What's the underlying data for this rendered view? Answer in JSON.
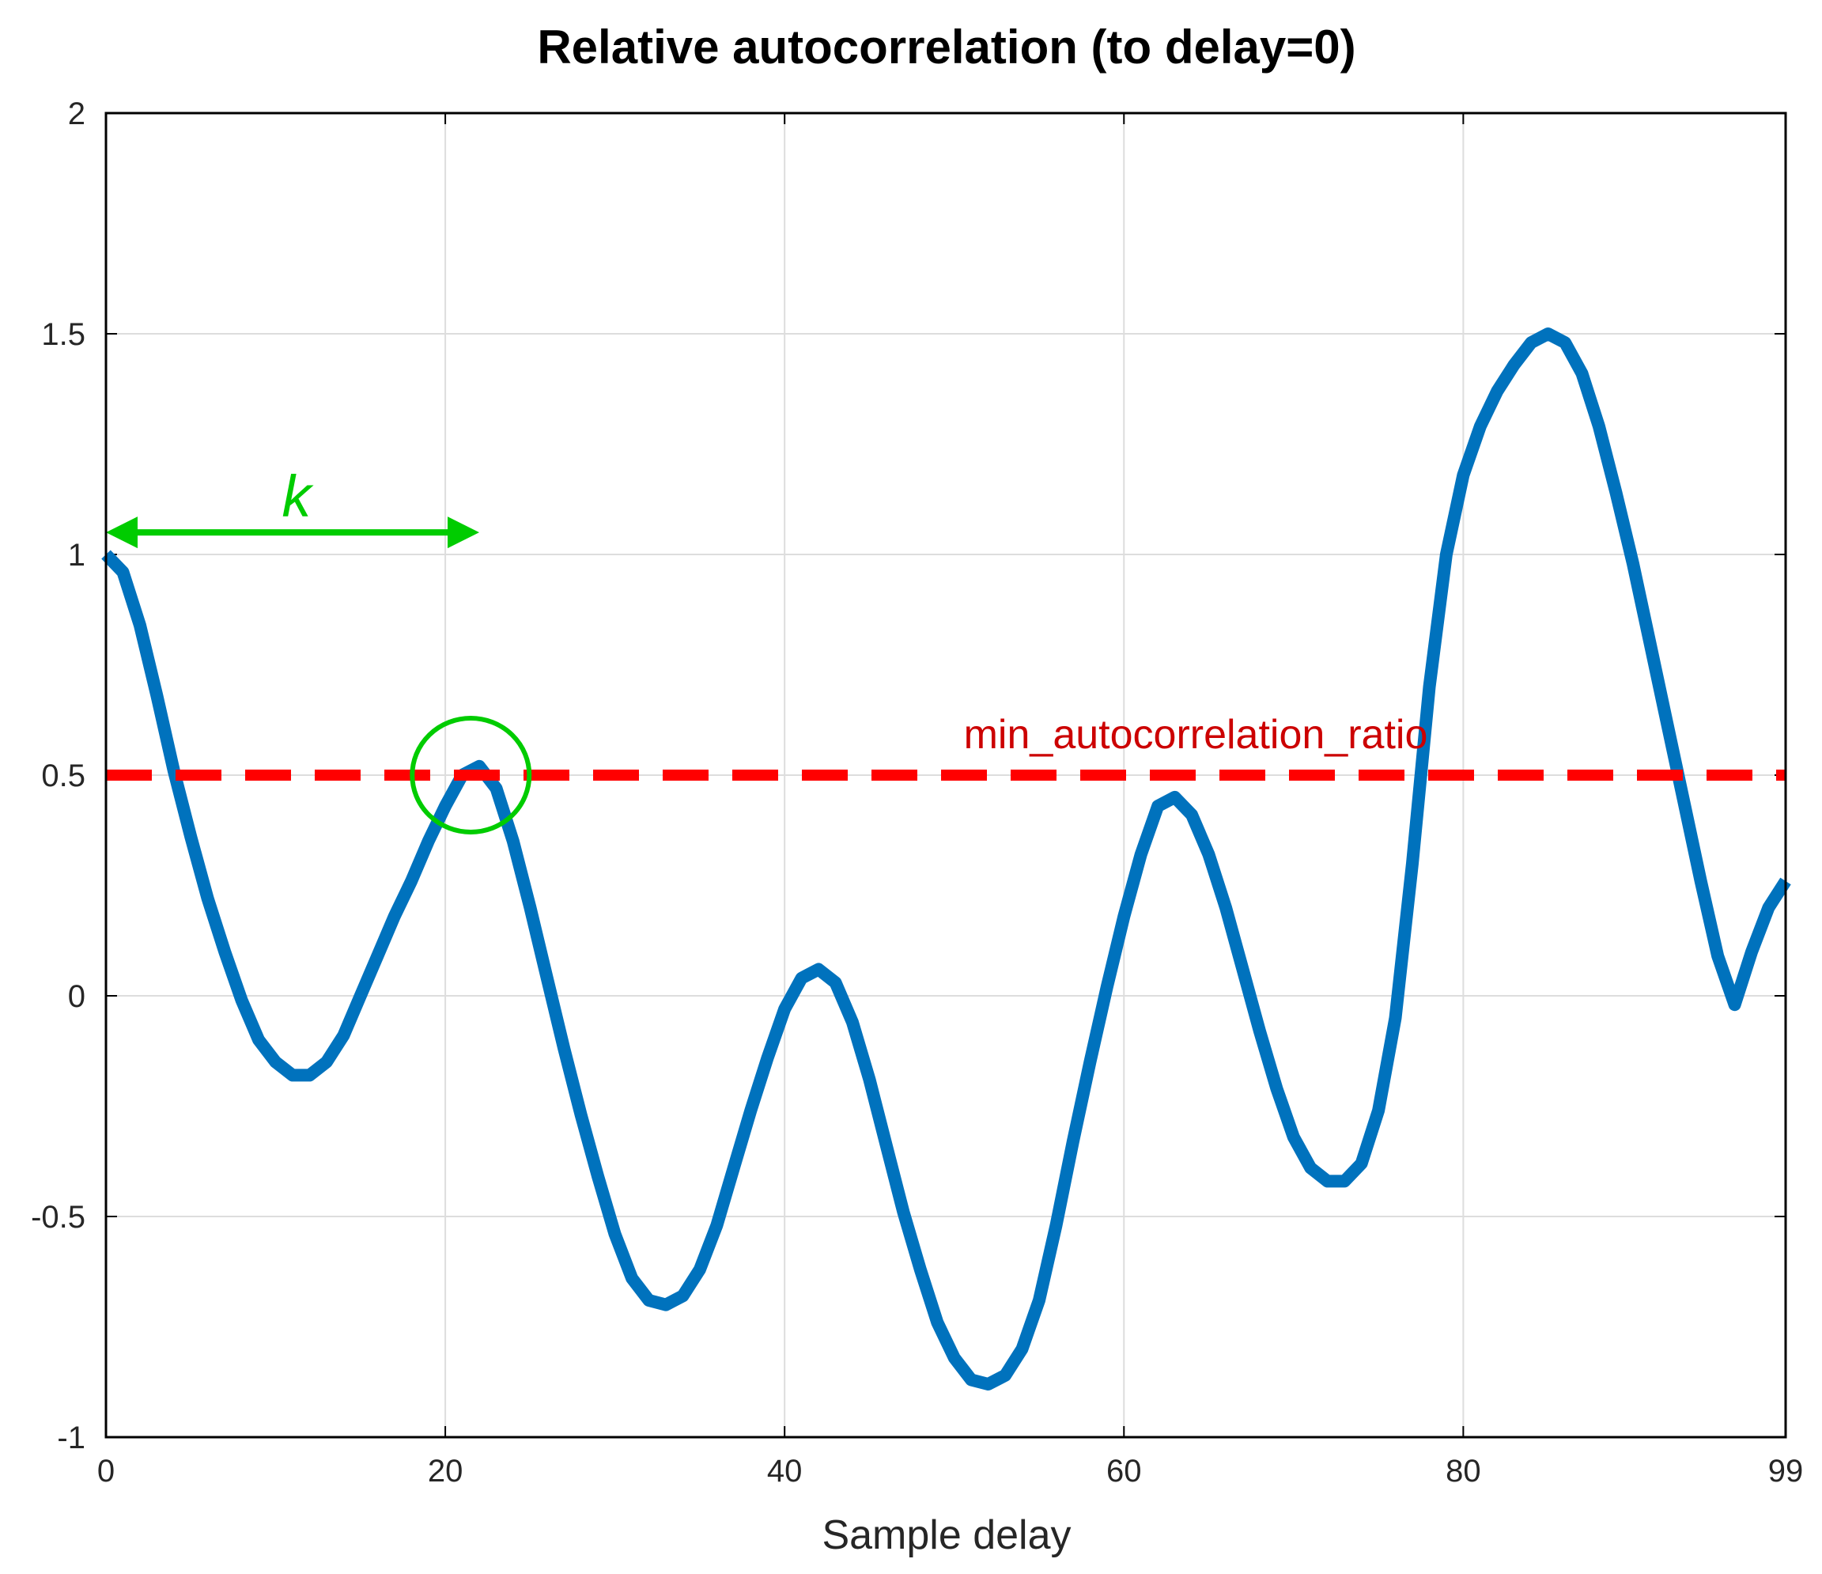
{
  "chart_data": {
    "type": "line",
    "title": "Relative autocorrelation (to delay=0)",
    "xlabel": "Sample delay",
    "ylabel": "",
    "xlim": [
      0,
      99
    ],
    "ylim": [
      -1,
      2
    ],
    "xticks": [
      "0",
      "20",
      "40",
      "60",
      "80",
      "99"
    ],
    "xtick_values": [
      0,
      20,
      40,
      60,
      80,
      99
    ],
    "yticks": [
      "2",
      "1.5",
      "1",
      "0.5",
      "0",
      "-0.5",
      "-1"
    ],
    "ytick_values": [
      2,
      1.5,
      1,
      0.5,
      0,
      -0.5,
      -1
    ],
    "grid": true,
    "series": [
      {
        "color": "#0072bd",
        "x": [
          0,
          1,
          2,
          3,
          4,
          5,
          6,
          7,
          8,
          9,
          10,
          11,
          12,
          13,
          14,
          15,
          16,
          17,
          18,
          19,
          20,
          21,
          22,
          23,
          24,
          25,
          26,
          27,
          28,
          29,
          30,
          31,
          32,
          33,
          34,
          35,
          36,
          37,
          38,
          39,
          40,
          41,
          42,
          43,
          44,
          45,
          46,
          47,
          48,
          49,
          50,
          51,
          52,
          53,
          54,
          55,
          56,
          57,
          58,
          59,
          60,
          61,
          62,
          63,
          64,
          65,
          66,
          67,
          68,
          69,
          70,
          71,
          72,
          73,
          74,
          75,
          76,
          77,
          78,
          79,
          80,
          81,
          82,
          83,
          84,
          85,
          86,
          87,
          88,
          89,
          90,
          91,
          92,
          93,
          94,
          95,
          96,
          97,
          98,
          99
        ],
        "y": [
          1.0,
          0.96,
          0.84,
          0.68,
          0.51,
          0.36,
          0.22,
          0.1,
          -0.01,
          -0.1,
          -0.15,
          -0.18,
          -0.18,
          -0.15,
          -0.09,
          0.0,
          0.09,
          0.18,
          0.26,
          0.35,
          0.43,
          0.5,
          0.52,
          0.47,
          0.35,
          0.2,
          0.04,
          -0.12,
          -0.27,
          -0.41,
          -0.54,
          -0.64,
          -0.69,
          -0.7,
          -0.68,
          -0.62,
          -0.52,
          -0.39,
          -0.26,
          -0.14,
          -0.03,
          0.04,
          0.06,
          0.03,
          -0.06,
          -0.19,
          -0.34,
          -0.49,
          -0.62,
          -0.74,
          -0.82,
          -0.87,
          -0.88,
          -0.86,
          -0.8,
          -0.69,
          -0.52,
          -0.33,
          -0.15,
          0.02,
          0.18,
          0.32,
          0.43,
          0.45,
          0.41,
          0.32,
          0.2,
          0.06,
          -0.08,
          -0.21,
          -0.32,
          -0.39,
          -0.42,
          -0.42,
          -0.38,
          -0.26,
          -0.05,
          0.3,
          0.7,
          1.0,
          1.18,
          1.29,
          1.37,
          1.43,
          1.48,
          1.5,
          1.48,
          1.41,
          1.29,
          1.14,
          0.98,
          0.8,
          0.62,
          0.44,
          0.26,
          0.09,
          -0.02,
          0.1,
          0.2,
          0.26
        ]
      }
    ],
    "threshold": {
      "y": 0.5,
      "color": "#ff0000",
      "style": "dashed",
      "label": "min_autocorrelation_ratio",
      "label_color": "#cc0000"
    },
    "k_arrow": {
      "x_start": 0,
      "x_end": 22,
      "y": 1.05,
      "label": "k",
      "color": "#00cc00"
    },
    "highlight_circle": {
      "x": 21.5,
      "y": 0.5,
      "color": "#00cc00"
    }
  }
}
